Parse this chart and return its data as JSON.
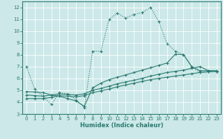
{
  "xlabel": "Humidex (Indice chaleur)",
  "ylabel": "",
  "xlim": [
    -0.5,
    23.5
  ],
  "ylim": [
    3,
    12.5
  ],
  "xticks": [
    0,
    1,
    2,
    3,
    4,
    5,
    6,
    7,
    8,
    9,
    10,
    11,
    12,
    13,
    14,
    15,
    16,
    17,
    18,
    19,
    20,
    21,
    22,
    23
  ],
  "yticks": [
    3,
    4,
    5,
    6,
    7,
    8,
    9,
    10,
    11,
    12
  ],
  "bg_color": "#cce8e8",
  "grid_color": "#b0d8d8",
  "line_color": "#2a7a70",
  "curve1_x": [
    0,
    1,
    2,
    3,
    4,
    5,
    6,
    7,
    8,
    9,
    10,
    11,
    12,
    13,
    14,
    15,
    16,
    17,
    18,
    19,
    20,
    21,
    22,
    23
  ],
  "curve1_y": [
    7.0,
    5.1,
    4.5,
    3.8,
    4.8,
    4.7,
    4.2,
    3.55,
    8.3,
    8.3,
    11.0,
    11.5,
    11.1,
    11.4,
    11.55,
    12.0,
    10.8,
    8.95,
    8.3,
    8.0,
    6.95,
    6.5,
    6.6,
    6.6
  ],
  "curve2_x": [
    0,
    1,
    2,
    3,
    4,
    5,
    6,
    7,
    8,
    9,
    10,
    11,
    12,
    13,
    14,
    15,
    16,
    17,
    18,
    19,
    20,
    21,
    22,
    23
  ],
  "curve2_y": [
    4.6,
    4.55,
    4.5,
    4.6,
    4.7,
    4.65,
    4.6,
    4.7,
    5.0,
    5.15,
    5.35,
    5.55,
    5.7,
    5.85,
    6.0,
    6.2,
    6.35,
    6.5,
    6.6,
    6.7,
    6.85,
    7.0,
    6.65,
    6.6
  ],
  "curve3_x": [
    0,
    1,
    2,
    3,
    4,
    5,
    6,
    7,
    8,
    9,
    10,
    11,
    12,
    13,
    14,
    15,
    16,
    17,
    18,
    19,
    20,
    21,
    22,
    23
  ],
  "curve3_y": [
    4.3,
    4.3,
    4.3,
    4.4,
    4.55,
    4.5,
    4.45,
    4.55,
    4.8,
    4.95,
    5.1,
    5.3,
    5.45,
    5.6,
    5.75,
    5.9,
    6.0,
    6.1,
    6.2,
    6.3,
    6.4,
    6.5,
    6.55,
    6.6
  ],
  "curve4_x": [
    0,
    1,
    2,
    3,
    4,
    5,
    6,
    7,
    8,
    9,
    10,
    11,
    12,
    13,
    14,
    15,
    16,
    17,
    18,
    19,
    20,
    21,
    22,
    23
  ],
  "curve4_y": [
    4.9,
    4.85,
    4.8,
    4.6,
    4.5,
    4.3,
    4.1,
    3.65,
    5.2,
    5.6,
    5.9,
    6.1,
    6.3,
    6.5,
    6.7,
    6.9,
    7.1,
    7.3,
    8.05,
    8.0,
    7.0,
    6.65,
    6.65,
    6.65
  ]
}
